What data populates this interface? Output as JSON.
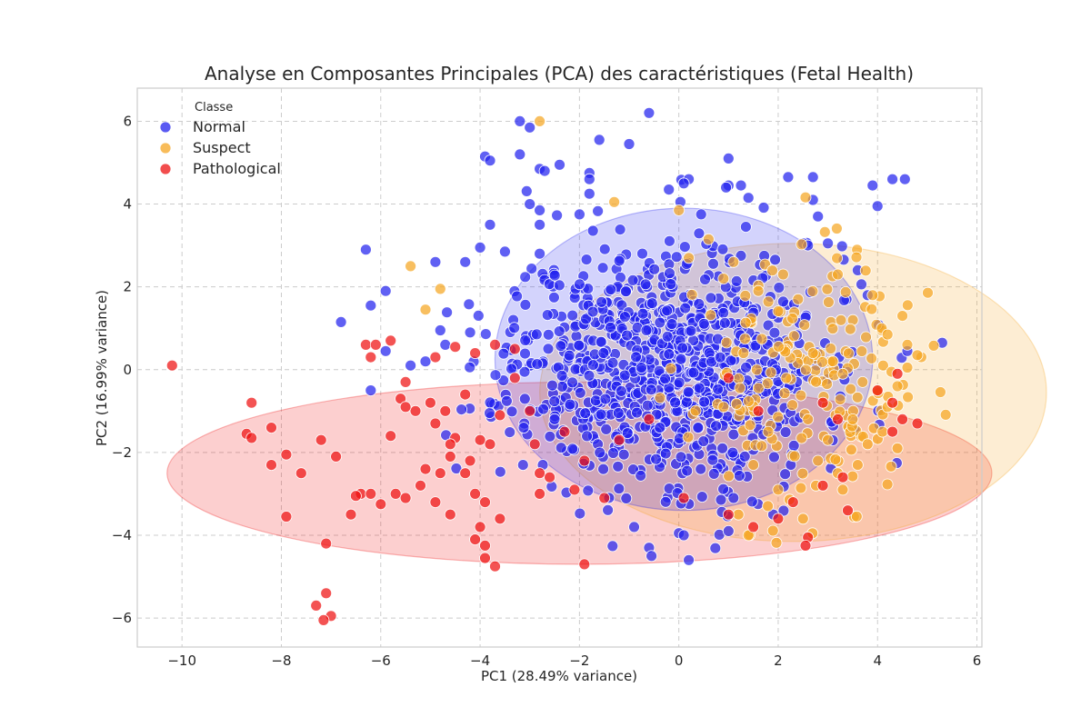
{
  "chart_data": {
    "type": "scatter",
    "title": "Analyse en Composantes Principales (PCA) des caractéristiques (Fetal Health)",
    "xlabel": "PC1 (28.49% variance)",
    "ylabel": "PC2 (16.99% variance)",
    "xlim": [
      -10.9,
      6.1
    ],
    "ylim": [
      -6.7,
      6.8
    ],
    "xticks": [
      -10,
      -8,
      -6,
      -4,
      -2,
      0,
      2,
      4,
      6
    ],
    "yticks": [
      -6,
      -4,
      -2,
      0,
      2,
      4,
      6
    ],
    "xtick_labels": [
      "−10",
      "−8",
      "−6",
      "−4",
      "−2",
      "0",
      "2",
      "4",
      "6"
    ],
    "ytick_labels": [
      "−6",
      "−4",
      "−2",
      "0",
      "2",
      "4",
      "6"
    ],
    "grid": true,
    "legend": {
      "title": "Classe",
      "placement": "top-left"
    },
    "series": [
      {
        "name": "Normal",
        "color": "#2222ee",
        "ellipse": {
          "cx": 0.1,
          "cy": 0.25,
          "rx": 3.8,
          "ry": 3.65
        },
        "points": [
          [
            -3.2,
            6.0
          ],
          [
            -3.0,
            5.85
          ],
          [
            -0.6,
            6.2
          ],
          [
            -1.6,
            5.55
          ],
          [
            -1.0,
            5.45
          ],
          [
            -3.9,
            5.15
          ],
          [
            -3.8,
            5.05
          ],
          [
            -3.2,
            5.2
          ],
          [
            -2.4,
            4.95
          ],
          [
            -2.8,
            4.85
          ],
          [
            -2.7,
            4.8
          ],
          [
            -1.8,
            4.75
          ],
          [
            -1.8,
            4.6
          ],
          [
            1.0,
            5.1
          ],
          [
            2.2,
            4.65
          ],
          [
            2.7,
            4.65
          ],
          [
            3.9,
            4.45
          ],
          [
            4.3,
            4.6
          ],
          [
            4.55,
            4.6
          ],
          [
            0.2,
            4.6
          ],
          [
            0.1,
            4.5
          ],
          [
            1.0,
            4.45
          ],
          [
            0.95,
            4.4
          ],
          [
            1.25,
            4.45
          ],
          [
            1.4,
            4.15
          ],
          [
            -0.2,
            4.35
          ],
          [
            -1.8,
            4.25
          ],
          [
            -2.8,
            3.85
          ],
          [
            -3.0,
            4.0
          ],
          [
            4.0,
            3.95
          ],
          [
            2.7,
            4.1
          ],
          [
            2.8,
            3.7
          ],
          [
            0.45,
            3.75
          ],
          [
            -3.8,
            3.5
          ],
          [
            -2.8,
            3.5
          ],
          [
            -2.0,
            3.75
          ],
          [
            1.35,
            3.45
          ],
          [
            2.5,
            3.05
          ],
          [
            3.0,
            3.05
          ],
          [
            -6.3,
            2.9
          ],
          [
            -4.0,
            2.95
          ],
          [
            -4.9,
            2.6
          ],
          [
            -4.3,
            2.6
          ],
          [
            -3.5,
            2.85
          ],
          [
            -2.8,
            2.8
          ],
          [
            -6.2,
            1.55
          ],
          [
            -5.9,
            1.9
          ],
          [
            -6.8,
            1.15
          ],
          [
            -5.9,
            0.45
          ],
          [
            -5.4,
            0.1
          ],
          [
            -5.1,
            0.2
          ],
          [
            -4.7,
            0.6
          ],
          [
            -6.2,
            -0.5
          ],
          [
            -4.8,
            0.95
          ],
          [
            -4.2,
            0.9
          ],
          [
            3.8,
            1.8
          ],
          [
            3.6,
            2.4
          ],
          [
            5.3,
            0.65
          ],
          [
            4.6,
            0.45
          ],
          [
            2.6,
            3.0
          ],
          [
            1.0,
            -3.9
          ],
          [
            0.2,
            -4.6
          ],
          [
            -0.6,
            -4.3
          ],
          [
            -0.55,
            -4.5
          ],
          [
            0.0,
            -3.95
          ],
          [
            0.1,
            -4.0
          ],
          [
            -0.9,
            -3.8
          ],
          [
            1.1,
            -3.1
          ],
          [
            1.9,
            -3.5
          ]
        ],
        "cloud": {
          "count": 900,
          "cx": -0.3,
          "cy": 0.1,
          "sx": 1.55,
          "sy": 1.45,
          "seed": 11
        }
      },
      {
        "name": "Suspect",
        "color": "#f5a623",
        "ellipse": {
          "cx": 2.3,
          "cy": -0.55,
          "rx": 5.1,
          "ry": 3.6
        },
        "points": [
          [
            -2.8,
            6.0
          ],
          [
            -5.4,
            2.5
          ],
          [
            -5.1,
            1.45
          ],
          [
            -4.8,
            1.95
          ],
          [
            -1.3,
            4.05
          ],
          [
            0.0,
            3.85
          ],
          [
            0.6,
            3.15
          ],
          [
            1.1,
            2.6
          ],
          [
            3.2,
            2.3
          ],
          [
            3.9,
            1.8
          ],
          [
            4.5,
            1.3
          ],
          [
            4.2,
            0.85
          ],
          [
            4.6,
            0.6
          ],
          [
            4.8,
            0.35
          ],
          [
            4.6,
            0.05
          ],
          [
            4.4,
            -0.4
          ],
          [
            4.0,
            -0.5
          ],
          [
            4.1,
            -1.5
          ],
          [
            3.6,
            -2.3
          ],
          [
            3.3,
            -2.9
          ],
          [
            1.4,
            -4.0
          ],
          [
            1.2,
            -3.5
          ],
          [
            2.5,
            -3.6
          ],
          [
            3.2,
            -2.5
          ],
          [
            3.8,
            -1.8
          ],
          [
            4.4,
            -1.9
          ],
          [
            3.5,
            -1.2
          ],
          [
            2.8,
            -2.2
          ],
          [
            2.0,
            -2.9
          ],
          [
            1.5,
            -2.3
          ],
          [
            3.1,
            0.2
          ],
          [
            3.3,
            -0.1
          ],
          [
            2.7,
            0.4
          ],
          [
            3.7,
            -0.3
          ],
          [
            2.4,
            1.7
          ],
          [
            2.1,
            2.3
          ],
          [
            1.6,
            1.9
          ],
          [
            0.9,
            2.2
          ],
          [
            0.2,
            2.7
          ],
          [
            0.9,
            -0.9
          ],
          [
            1.8,
            -1.5
          ],
          [
            2.6,
            -1.2
          ],
          [
            4.2,
            -0.9
          ],
          [
            3.0,
            -1.7
          ]
        ],
        "cloud": {
          "count": 180,
          "cx": 2.6,
          "cy": -0.3,
          "sx": 1.1,
          "sy": 1.45,
          "seed": 23
        }
      },
      {
        "name": "Pathological",
        "color": "#ee1111",
        "ellipse": {
          "cx": -2.0,
          "cy": -2.5,
          "rx": 8.3,
          "ry": 2.2
        },
        "points": [
          [
            -10.2,
            0.1
          ],
          [
            -8.6,
            -0.8
          ],
          [
            -8.7,
            -1.55
          ],
          [
            -8.6,
            -1.65
          ],
          [
            -8.2,
            -1.4
          ],
          [
            -8.2,
            -2.3
          ],
          [
            -7.9,
            -2.05
          ],
          [
            -7.2,
            -1.7
          ],
          [
            -7.9,
            -3.55
          ],
          [
            -7.1,
            -4.2
          ],
          [
            -7.3,
            -5.7
          ],
          [
            -7.1,
            -5.4
          ],
          [
            -7.0,
            -5.95
          ],
          [
            -7.15,
            -6.05
          ],
          [
            -6.4,
            -3.0
          ],
          [
            -6.5,
            -3.05
          ],
          [
            -6.6,
            -3.5
          ],
          [
            -6.2,
            -3.0
          ],
          [
            -6.0,
            -3.25
          ],
          [
            -5.7,
            -3.0
          ],
          [
            -5.5,
            -3.1
          ],
          [
            -6.3,
            0.6
          ],
          [
            -6.1,
            0.6
          ],
          [
            -6.2,
            0.3
          ],
          [
            -5.8,
            0.7
          ],
          [
            -5.6,
            -0.7
          ],
          [
            -5.3,
            -1.0
          ],
          [
            -4.9,
            -1.3
          ],
          [
            -4.5,
            -1.65
          ],
          [
            -4.0,
            -1.7
          ],
          [
            -3.8,
            -1.8
          ],
          [
            -5.1,
            -2.4
          ],
          [
            -4.8,
            -2.5
          ],
          [
            -4.6,
            -2.1
          ],
          [
            -4.3,
            -2.5
          ],
          [
            -4.1,
            -3.0
          ],
          [
            -3.9,
            -3.2
          ],
          [
            -3.6,
            -3.6
          ],
          [
            -4.0,
            -3.8
          ],
          [
            -3.9,
            -4.25
          ],
          [
            -4.1,
            -4.1
          ],
          [
            -3.9,
            -4.55
          ],
          [
            -3.7,
            -4.75
          ],
          [
            -4.6,
            -3.5
          ],
          [
            -4.9,
            -3.2
          ],
          [
            -5.2,
            -2.8
          ],
          [
            -5.5,
            -0.3
          ],
          [
            -5.0,
            -0.8
          ],
          [
            -4.7,
            -1.0
          ],
          [
            -4.3,
            -0.6
          ],
          [
            -4.9,
            0.3
          ],
          [
            -4.5,
            0.55
          ],
          [
            -4.1,
            0.4
          ],
          [
            -3.7,
            0.6
          ],
          [
            -3.3,
            0.5
          ],
          [
            -2.8,
            -2.5
          ],
          [
            -2.6,
            -2.6
          ],
          [
            -2.8,
            -3.0
          ],
          [
            -1.9,
            -4.7
          ],
          [
            0.1,
            -3.1
          ],
          [
            1.0,
            -3.5
          ],
          [
            1.5,
            -3.8
          ],
          [
            2.0,
            -3.6
          ],
          [
            2.6,
            -4.05
          ],
          [
            2.55,
            -4.25
          ],
          [
            2.3,
            -3.2
          ],
          [
            2.9,
            -2.8
          ],
          [
            3.3,
            -2.6
          ],
          [
            3.4,
            -3.4
          ],
          [
            4.3,
            -1.5
          ],
          [
            4.8,
            -1.3
          ],
          [
            4.5,
            -1.2
          ],
          [
            4.3,
            -0.8
          ],
          [
            4.0,
            -0.5
          ],
          [
            4.4,
            -0.1
          ],
          [
            2.9,
            -0.8
          ],
          [
            3.2,
            -1.2
          ],
          [
            1.6,
            -1.0
          ],
          [
            1.0,
            -0.2
          ],
          [
            -0.6,
            -1.2
          ],
          [
            -1.2,
            -1.7
          ],
          [
            -1.9,
            -2.2
          ],
          [
            -2.3,
            -1.5
          ],
          [
            -3.0,
            -1.0
          ],
          [
            -3.3,
            -0.2
          ],
          [
            -3.6,
            -1.1
          ],
          [
            -2.9,
            -1.8
          ],
          [
            -2.1,
            -2.9
          ],
          [
            -1.5,
            -3.1
          ],
          [
            -5.5,
            -0.9
          ],
          [
            -4.2,
            -2.2
          ],
          [
            -4.6,
            -1.8
          ],
          [
            -5.8,
            -1.6
          ],
          [
            -6.9,
            -2.1
          ],
          [
            -7.6,
            -2.5
          ]
        ],
        "cloud": {
          "count": 0,
          "cx": 0,
          "cy": 0,
          "sx": 1,
          "sy": 1,
          "seed": 37
        }
      }
    ]
  }
}
